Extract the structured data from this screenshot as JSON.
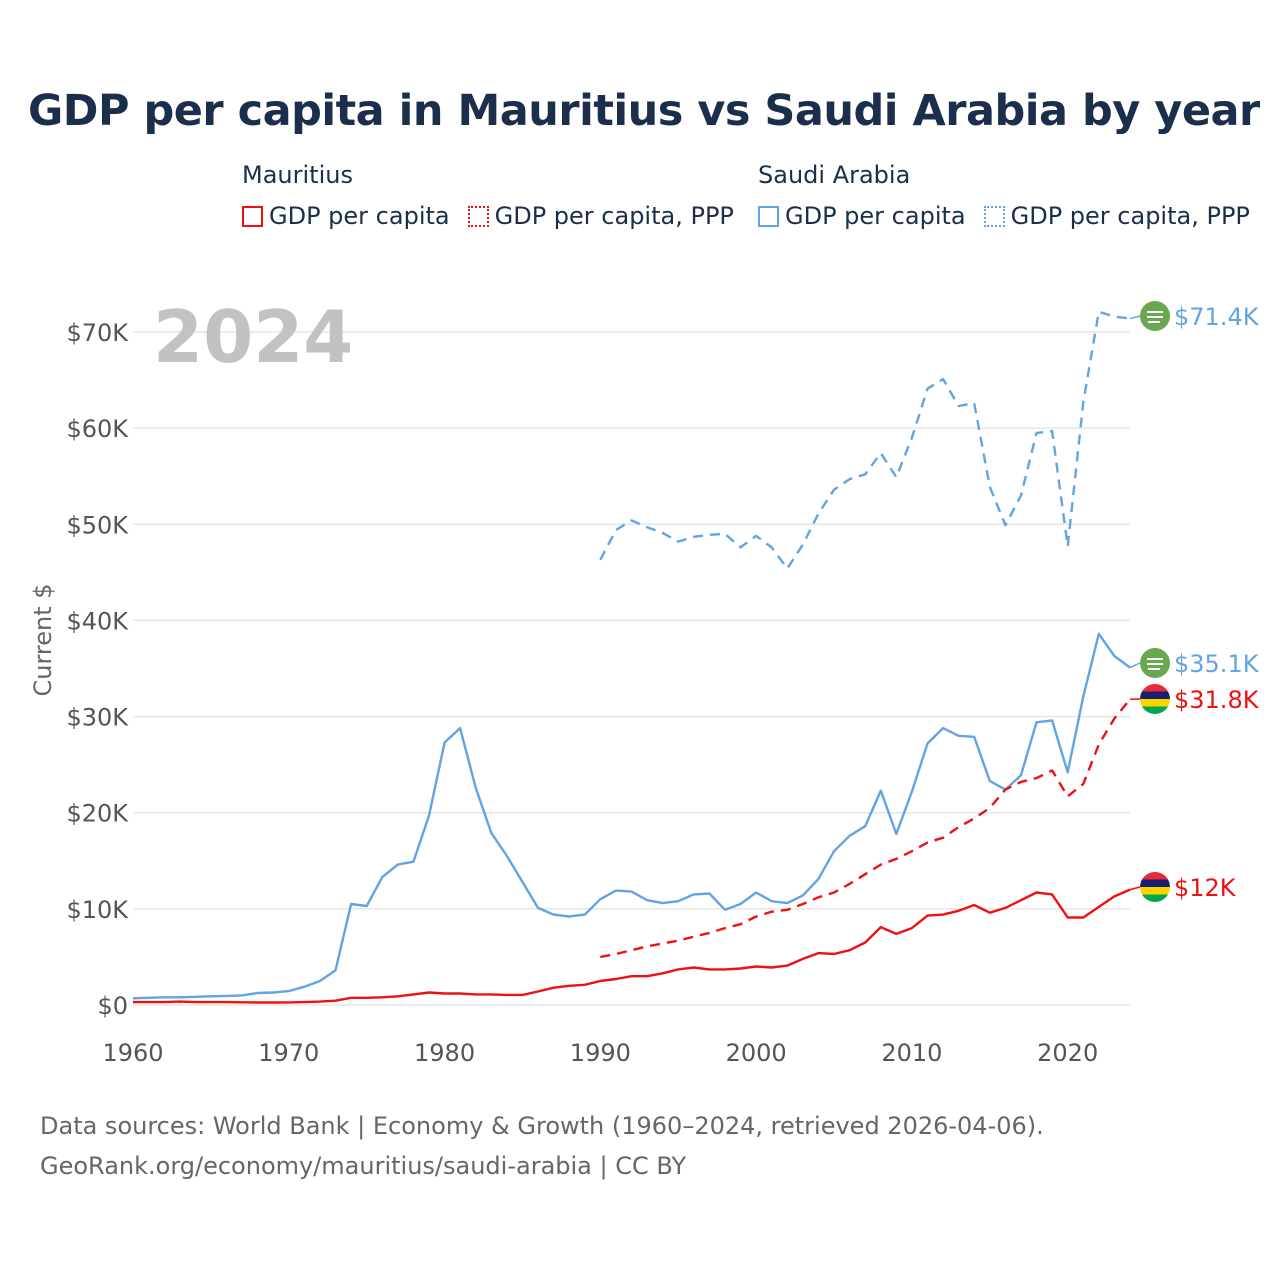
{
  "title": "GDP per capita in Mauritius vs Saudi Arabia by year",
  "legend": {
    "mauritius": {
      "name": "Mauritius",
      "gdp": "GDP per capita",
      "ppp": "GDP per capita, PPP"
    },
    "saudi": {
      "name": "Saudi Arabia",
      "gdp": "GDP per capita",
      "ppp": "GDP per capita, PPP"
    }
  },
  "colors": {
    "mauritius": "#ee1111",
    "saudi": "#62a4e2",
    "grid": "#e6e6e6",
    "axis_text": "#555555",
    "year_watermark": "#c2c2c2"
  },
  "year_label": "2024",
  "end_labels": {
    "saudi_ppp": "$71.4K",
    "saudi_gdp": "$35.1K",
    "mauritius_ppp": "$31.8K",
    "mauritius_gdp": "$12K"
  },
  "flag_icons": {
    "saudi": "saudi-arabia-flag-icon",
    "mauritius": "mauritius-flag-icon"
  },
  "footer": {
    "line1": "Data sources: World Bank | Economy & Growth (1960–2024, retrieved 2026-04-06).",
    "line2": "GeoRank.org/economy/mauritius/saudi-arabia | CC BY"
  },
  "chart_data": {
    "type": "line",
    "title": "GDP per capita in Mauritius vs Saudi Arabia by year",
    "xlabel": "",
    "ylabel": "Current $",
    "xlim": [
      1960,
      2024
    ],
    "ylim": [
      0,
      70000
    ],
    "x_ticks": [
      1960,
      1970,
      1980,
      1990,
      2000,
      2010,
      2020
    ],
    "x_tick_labels": [
      "1960",
      "1970",
      "1980",
      "1990",
      "2000",
      "2010",
      "2020"
    ],
    "y_ticks": [
      0,
      10000,
      20000,
      30000,
      40000,
      50000,
      60000,
      70000
    ],
    "y_tick_labels": [
      "$0",
      "$10K",
      "$20K",
      "$30K",
      "$40K",
      "$50K",
      "$60K",
      "$70K"
    ],
    "series": [
      {
        "key": "saudi_ppp",
        "name": "Saudi Arabia — GDP per capita, PPP",
        "style": "dashed",
        "color": "#62a4e2",
        "x": [
          1990,
          1991,
          1992,
          1993,
          1994,
          1995,
          1996,
          1997,
          1998,
          1999,
          2000,
          2001,
          2002,
          2003,
          2004,
          2005,
          2006,
          2007,
          2008,
          2009,
          2010,
          2011,
          2012,
          2013,
          2014,
          2015,
          2016,
          2017,
          2018,
          2019,
          2020,
          2021,
          2022,
          2023,
          2024
        ],
        "values": [
          46300,
          49400,
          50400,
          49700,
          49100,
          48200,
          48700,
          48900,
          49000,
          47600,
          48800,
          47600,
          45400,
          47900,
          51100,
          53600,
          54700,
          55200,
          57400,
          54900,
          59000,
          64100,
          65100,
          62300,
          62600,
          53900,
          49900,
          53000,
          59500,
          59700,
          47700,
          62700,
          72100,
          71600,
          71400
        ]
      },
      {
        "key": "saudi_gdp",
        "name": "Saudi Arabia — GDP per capita",
        "style": "solid",
        "color": "#62a4e2",
        "x": [
          1960,
          1961,
          1962,
          1963,
          1964,
          1965,
          1966,
          1967,
          1968,
          1969,
          1970,
          1971,
          1972,
          1973,
          1974,
          1975,
          1976,
          1977,
          1978,
          1979,
          1980,
          1981,
          1982,
          1983,
          1984,
          1985,
          1986,
          1987,
          1988,
          1989,
          1990,
          1991,
          1992,
          1993,
          1994,
          1995,
          1996,
          1997,
          1998,
          1999,
          2000,
          2001,
          2002,
          2003,
          2004,
          2005,
          2006,
          2007,
          2008,
          2009,
          2010,
          2011,
          2012,
          2013,
          2014,
          2015,
          2016,
          2017,
          2018,
          2019,
          2020,
          2021,
          2022,
          2023,
          2024
        ],
        "values": [
          700,
          750,
          800,
          800,
          850,
          900,
          950,
          1000,
          1250,
          1300,
          1450,
          1900,
          2500,
          3600,
          10500,
          10300,
          13300,
          14600,
          14900,
          19700,
          27300,
          28800,
          22600,
          17900,
          15500,
          12800,
          10100,
          9400,
          9200,
          9400,
          11000,
          11900,
          11800,
          10900,
          10600,
          10800,
          11500,
          11600,
          9900,
          10500,
          11700,
          10800,
          10600,
          11400,
          13100,
          16000,
          17600,
          18600,
          22300,
          17800,
          22200,
          27200,
          28800,
          28000,
          27900,
          23300,
          22400,
          23900,
          29400,
          29600,
          24200,
          32100,
          38600,
          36300,
          35100
        ]
      },
      {
        "key": "mauritius_ppp",
        "name": "Mauritius — GDP per capita, PPP",
        "style": "dashed",
        "color": "#ee1111",
        "x": [
          1990,
          1991,
          1992,
          1993,
          1994,
          1995,
          1996,
          1997,
          1998,
          1999,
          2000,
          2001,
          2002,
          2003,
          2004,
          2005,
          2006,
          2007,
          2008,
          2009,
          2010,
          2011,
          2012,
          2013,
          2014,
          2015,
          2016,
          2017,
          2018,
          2019,
          2020,
          2021,
          2022,
          2023,
          2024
        ],
        "values": [
          5000,
          5300,
          5700,
          6100,
          6400,
          6700,
          7100,
          7500,
          8000,
          8400,
          9200,
          9700,
          9900,
          10500,
          11200,
          11700,
          12600,
          13600,
          14600,
          15200,
          16000,
          16900,
          17400,
          18500,
          19400,
          20500,
          22400,
          23200,
          23600,
          24400,
          21700,
          23000,
          27100,
          29800,
          31800
        ]
      },
      {
        "key": "mauritius_gdp",
        "name": "Mauritius — GDP per capita",
        "style": "solid",
        "color": "#ee1111",
        "x": [
          1960,
          1961,
          1962,
          1963,
          1964,
          1965,
          1966,
          1967,
          1968,
          1969,
          1970,
          1971,
          1972,
          1973,
          1974,
          1975,
          1976,
          1977,
          1978,
          1979,
          1980,
          1981,
          1982,
          1983,
          1984,
          1985,
          1986,
          1987,
          1988,
          1989,
          1990,
          1991,
          1992,
          1993,
          1994,
          1995,
          1996,
          1997,
          1998,
          1999,
          2000,
          2001,
          2002,
          2003,
          2004,
          2005,
          2006,
          2007,
          2008,
          2009,
          2010,
          2011,
          2012,
          2013,
          2014,
          2015,
          2016,
          2017,
          2018,
          2019,
          2020,
          2021,
          2022,
          2023,
          2024
        ],
        "values": [
          300,
          300,
          300,
          350,
          300,
          300,
          300,
          280,
          260,
          260,
          270,
          300,
          350,
          450,
          750,
          750,
          800,
          900,
          1100,
          1300,
          1200,
          1200,
          1100,
          1100,
          1050,
          1050,
          1400,
          1800,
          2000,
          2100,
          2500,
          2700,
          3000,
          3000,
          3300,
          3700,
          3900,
          3700,
          3700,
          3800,
          4000,
          3900,
          4100,
          4800,
          5400,
          5300,
          5700,
          6500,
          8100,
          7400,
          8000,
          9300,
          9400,
          9800,
          10400,
          9600,
          10100,
          10900,
          11700,
          11500,
          9100,
          9100,
          10200,
          11300,
          12000
        ]
      }
    ]
  }
}
